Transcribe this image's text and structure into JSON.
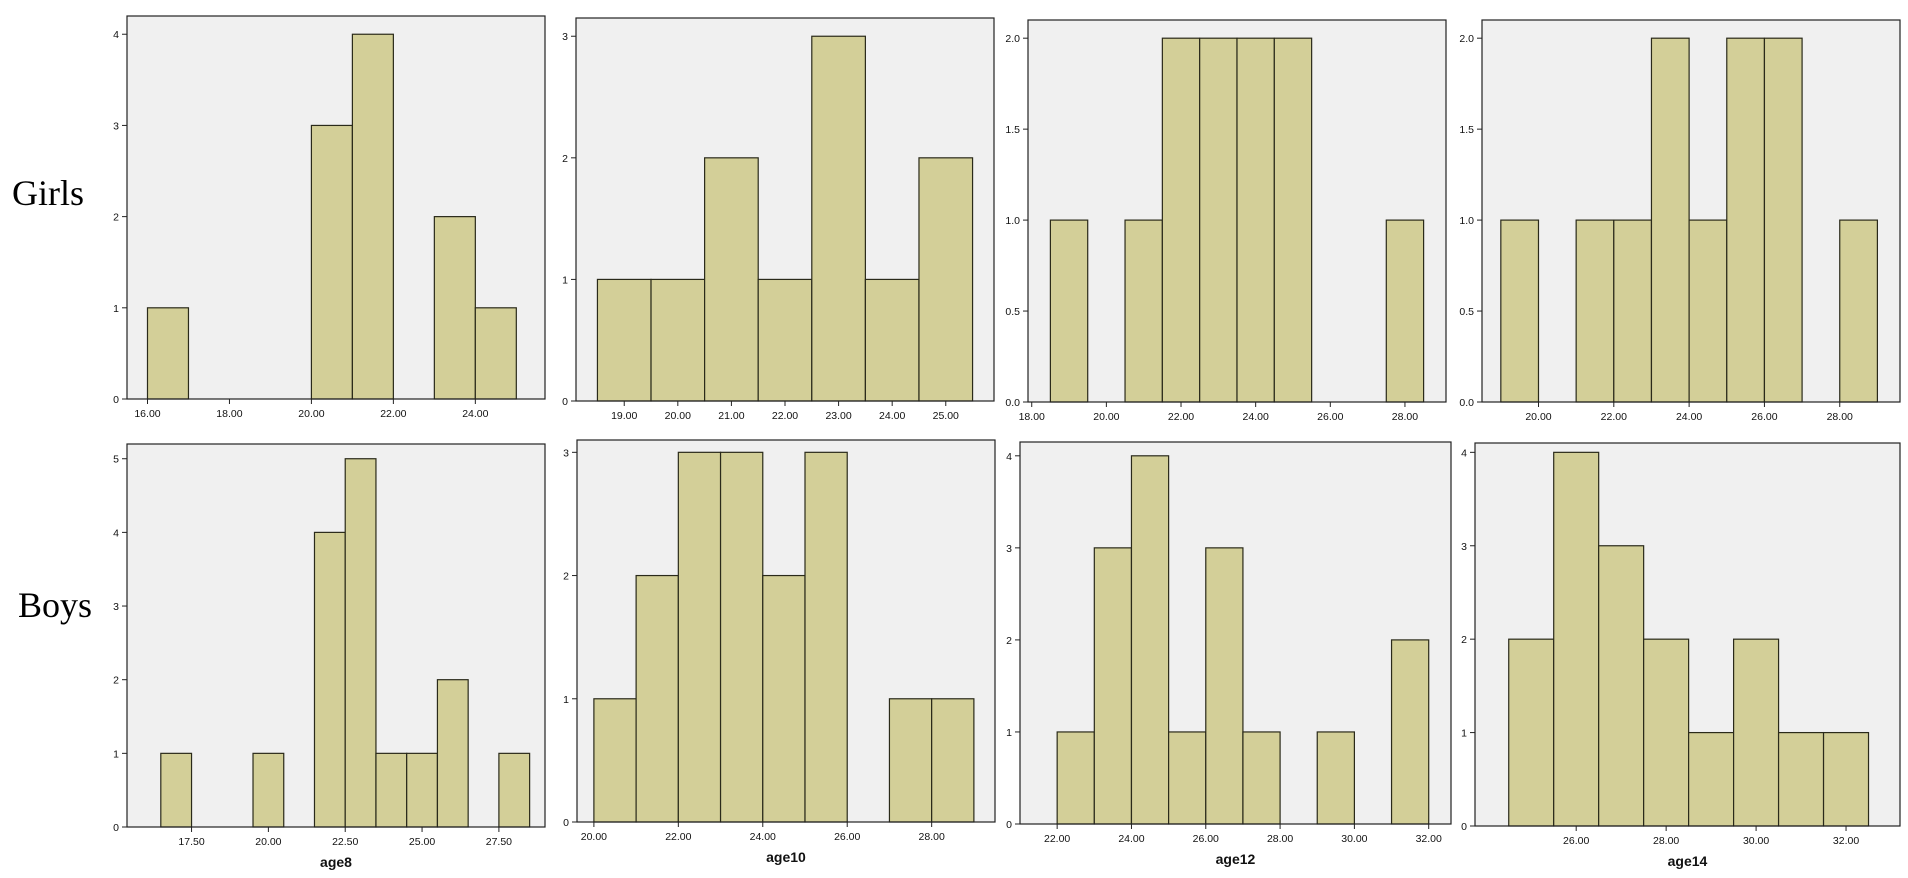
{
  "row_labels": {
    "girls": "Girls",
    "boys": "Boys"
  },
  "colors": {
    "bar_fill": "#d3cf98",
    "bar_stroke": "#2a2a1a",
    "plot_bg": "#f0f0f0",
    "frame": "#222222"
  },
  "chart_data": [
    {
      "id": "girls-age8",
      "type": "bar",
      "xlabel": "",
      "xlim": [
        15.5,
        25.7
      ],
      "xticks": [
        16,
        18,
        20,
        22,
        24
      ],
      "ylim": [
        0,
        4.2
      ],
      "yticks": [
        0,
        1,
        2,
        3,
        4
      ],
      "ytick_decimals": 0,
      "bins": [
        {
          "from": 16,
          "to": 17,
          "value": 1
        },
        {
          "from": 20,
          "to": 21,
          "value": 3
        },
        {
          "from": 21,
          "to": 22,
          "value": 4
        },
        {
          "from": 23,
          "to": 24,
          "value": 2
        },
        {
          "from": 24,
          "to": 25,
          "value": 1
        }
      ]
    },
    {
      "id": "girls-age10",
      "type": "bar",
      "xlabel": "",
      "xlim": [
        18.1,
        25.9
      ],
      "xticks": [
        19,
        20,
        21,
        22,
        23,
        24,
        25
      ],
      "ylim": [
        0,
        3.15
      ],
      "yticks": [
        0,
        1,
        2,
        3
      ],
      "ytick_decimals": 0,
      "bins": [
        {
          "from": 18.5,
          "to": 19.5,
          "value": 1
        },
        {
          "from": 19.5,
          "to": 20.5,
          "value": 1
        },
        {
          "from": 20.5,
          "to": 21.5,
          "value": 2
        },
        {
          "from": 21.5,
          "to": 22.5,
          "value": 1
        },
        {
          "from": 22.5,
          "to": 23.5,
          "value": 3
        },
        {
          "from": 23.5,
          "to": 24.5,
          "value": 1
        },
        {
          "from": 24.5,
          "to": 25.5,
          "value": 2
        }
      ]
    },
    {
      "id": "girls-age12",
      "type": "bar",
      "xlabel": "",
      "xlim": [
        17.9,
        29.1
      ],
      "xticks": [
        18,
        20,
        22,
        24,
        26,
        28
      ],
      "ylim": [
        0,
        2.1
      ],
      "yticks": [
        0,
        0.5,
        1,
        1.5,
        2
      ],
      "ytick_decimals": 1,
      "bins": [
        {
          "from": 18.5,
          "to": 19.5,
          "value": 1
        },
        {
          "from": 20.5,
          "to": 21.5,
          "value": 1
        },
        {
          "from": 21.5,
          "to": 22.5,
          "value": 2
        },
        {
          "from": 22.5,
          "to": 23.5,
          "value": 2
        },
        {
          "from": 23.5,
          "to": 24.5,
          "value": 2
        },
        {
          "from": 24.5,
          "to": 25.5,
          "value": 2
        },
        {
          "from": 27.5,
          "to": 28.5,
          "value": 1
        }
      ]
    },
    {
      "id": "girls-age14",
      "type": "bar",
      "xlabel": "",
      "xlim": [
        18.5,
        29.6
      ],
      "xticks": [
        20,
        22,
        24,
        26,
        28
      ],
      "ylim": [
        0,
        2.1
      ],
      "yticks": [
        0,
        0.5,
        1,
        1.5,
        2
      ],
      "ytick_decimals": 1,
      "bins": [
        {
          "from": 19,
          "to": 20,
          "value": 1
        },
        {
          "from": 21,
          "to": 22,
          "value": 1
        },
        {
          "from": 22,
          "to": 23,
          "value": 1
        },
        {
          "from": 23,
          "to": 24,
          "value": 2
        },
        {
          "from": 24,
          "to": 25,
          "value": 1
        },
        {
          "from": 25,
          "to": 26,
          "value": 2
        },
        {
          "from": 26,
          "to": 27,
          "value": 2
        },
        {
          "from": 28,
          "to": 29,
          "value": 1
        }
      ]
    },
    {
      "id": "boys-age8",
      "type": "bar",
      "xlabel": "age8",
      "xlim": [
        15.4,
        29.0
      ],
      "xticks": [
        17.5,
        20,
        22.5,
        25,
        27.5
      ],
      "ylim": [
        0,
        5.2
      ],
      "yticks": [
        0,
        1,
        2,
        3,
        4,
        5
      ],
      "ytick_decimals": 0,
      "bins": [
        {
          "from": 16.5,
          "to": 17.5,
          "value": 1
        },
        {
          "from": 19.5,
          "to": 20.5,
          "value": 1
        },
        {
          "from": 21.5,
          "to": 22.5,
          "value": 4
        },
        {
          "from": 22.5,
          "to": 23.5,
          "value": 5
        },
        {
          "from": 23.5,
          "to": 24.5,
          "value": 1
        },
        {
          "from": 24.5,
          "to": 25.5,
          "value": 1
        },
        {
          "from": 25.5,
          "to": 26.5,
          "value": 2
        },
        {
          "from": 27.5,
          "to": 28.5,
          "value": 1
        }
      ]
    },
    {
      "id": "boys-age10",
      "type": "bar",
      "xlabel": "age10",
      "xlim": [
        19.6,
        29.5
      ],
      "xticks": [
        20,
        22,
        24,
        26,
        28
      ],
      "ylim": [
        0,
        3.1
      ],
      "yticks": [
        0,
        1,
        2,
        3
      ],
      "ytick_decimals": 0,
      "bins": [
        {
          "from": 20,
          "to": 21,
          "value": 1
        },
        {
          "from": 21,
          "to": 22,
          "value": 2
        },
        {
          "from": 22,
          "to": 23,
          "value": 3
        },
        {
          "from": 23,
          "to": 24,
          "value": 3
        },
        {
          "from": 24,
          "to": 25,
          "value": 2
        },
        {
          "from": 25,
          "to": 26,
          "value": 3
        },
        {
          "from": 27,
          "to": 28,
          "value": 1
        },
        {
          "from": 28,
          "to": 29,
          "value": 1
        }
      ]
    },
    {
      "id": "boys-age12",
      "type": "bar",
      "xlabel": "age12",
      "xlim": [
        21.0,
        32.6
      ],
      "xticks": [
        22,
        24,
        26,
        28,
        30,
        32
      ],
      "ylim": [
        0,
        4.15
      ],
      "yticks": [
        0,
        1,
        2,
        3,
        4
      ],
      "ytick_decimals": 0,
      "bins": [
        {
          "from": 22,
          "to": 23,
          "value": 1
        },
        {
          "from": 23,
          "to": 24,
          "value": 3
        },
        {
          "from": 24,
          "to": 25,
          "value": 4
        },
        {
          "from": 25,
          "to": 26,
          "value": 1
        },
        {
          "from": 26,
          "to": 27,
          "value": 3
        },
        {
          "from": 27,
          "to": 28,
          "value": 1
        },
        {
          "from": 29,
          "to": 30,
          "value": 1
        },
        {
          "from": 31,
          "to": 32,
          "value": 2
        }
      ]
    },
    {
      "id": "boys-age14",
      "type": "bar",
      "xlabel": "age14",
      "xlim": [
        23.75,
        33.2
      ],
      "xticks": [
        26,
        28,
        30,
        32
      ],
      "ylim": [
        0,
        4.1
      ],
      "yticks": [
        0,
        1,
        2,
        3,
        4
      ],
      "ytick_decimals": 0,
      "bins": [
        {
          "from": 24.5,
          "to": 25.5,
          "value": 2
        },
        {
          "from": 25.5,
          "to": 26.5,
          "value": 4
        },
        {
          "from": 26.5,
          "to": 27.5,
          "value": 3
        },
        {
          "from": 27.5,
          "to": 28.5,
          "value": 2
        },
        {
          "from": 28.5,
          "to": 29.5,
          "value": 1
        },
        {
          "from": 29.5,
          "to": 30.5,
          "value": 2
        },
        {
          "from": 30.5,
          "to": 31.5,
          "value": 1
        },
        {
          "from": 31.5,
          "to": 32.5,
          "value": 1
        }
      ]
    }
  ]
}
